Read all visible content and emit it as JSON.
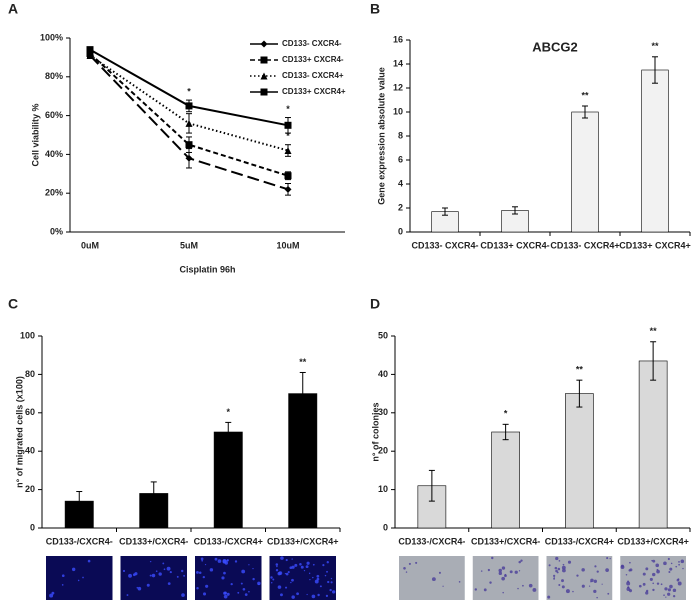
{
  "chart_data": [
    {
      "type": "line",
      "label": "A",
      "xlabel": "Cisplatin 96h",
      "ylabel": "Cell viability %",
      "categories": [
        "0uM",
        "5uM",
        "10uM"
      ],
      "ylim": [
        0,
        100
      ],
      "yticks": [
        {
          "value": 0,
          "label": "0%"
        },
        {
          "value": 20,
          "label": "20%"
        },
        {
          "value": 40,
          "label": "40%"
        },
        {
          "value": 60,
          "label": "60%"
        },
        {
          "value": 80,
          "label": "80%"
        },
        {
          "value": 100,
          "label": "100%"
        }
      ],
      "legend": "top-right",
      "series": [
        {
          "name": "CD133- CXCR4-",
          "color": "#000000",
          "marker": "diamond",
          "dash": "long",
          "values": [
            91,
            38,
            22
          ],
          "errors": [
            1,
            5,
            3
          ],
          "annotations": [
            null,
            null,
            null
          ]
        },
        {
          "name": "CD133+ CXCR4-",
          "color": "#000000",
          "marker": "square",
          "dash": "short",
          "values": [
            92,
            45,
            29
          ],
          "errors": [
            1,
            4,
            2
          ],
          "annotations": [
            null,
            null,
            null
          ]
        },
        {
          "name": "CD133- CXCR4+",
          "color": "#000000",
          "marker": "triangle",
          "dash": "dotted",
          "values": [
            91,
            56,
            42
          ],
          "errors": [
            1,
            5,
            3
          ],
          "annotations": [
            null,
            null,
            "*"
          ]
        },
        {
          "name": "CD133+ CXCR4+",
          "color": "#000000",
          "marker": "square",
          "dash": "solid",
          "values": [
            94,
            65,
            55
          ],
          "errors": [
            1,
            3,
            4
          ],
          "annotations": [
            null,
            "*",
            "*"
          ]
        }
      ]
    },
    {
      "type": "bar",
      "label": "B",
      "title": "ABCG2",
      "ylabel": "Gene expression absolute value",
      "categories": [
        "CD133- CXCR4-",
        "CD133+ CXCR4-",
        "CD133- CXCR4+",
        "CD133+ CXCR4+"
      ],
      "values": [
        1.7,
        1.8,
        10,
        13.5
      ],
      "errors": [
        0.3,
        0.3,
        0.5,
        1.1
      ],
      "annotations": [
        null,
        null,
        "**",
        "**"
      ],
      "color": "#f2f2f2",
      "ylim": [
        0,
        16
      ],
      "yticks": [
        0,
        2,
        4,
        6,
        8,
        10,
        12,
        14,
        16
      ]
    },
    {
      "type": "bar",
      "label": "C",
      "ylabel": "n° of migrated cells (x100)",
      "categories": [
        "CD133-/CXCR4-",
        "CD133+/CXCR4-",
        "CD133-/CXCR4+",
        "CD133+/CXCR4+"
      ],
      "values": [
        14,
        18,
        50,
        70
      ],
      "errors": [
        5,
        6,
        5,
        11
      ],
      "annotations": [
        null,
        null,
        "*",
        "**"
      ],
      "color": "#000000",
      "ylim": [
        0,
        100
      ],
      "yticks": [
        0,
        20,
        40,
        60,
        80,
        100
      ]
    },
    {
      "type": "bar",
      "label": "D",
      "ylabel": "n° of colonies",
      "categories": [
        "CD133-/CXCR4-",
        "CD133+/CXCR4-",
        "CD133-/CXCR4+",
        "CD133+/CXCR4+"
      ],
      "values": [
        11,
        25,
        35,
        43.5
      ],
      "errors": [
        4,
        2,
        3.5,
        5
      ],
      "annotations": [
        null,
        "*",
        "**",
        "**"
      ],
      "color": "#d9d9d9",
      "ylim": [
        0,
        50
      ],
      "yticks": [
        0,
        10,
        20,
        30,
        40,
        50
      ]
    }
  ]
}
